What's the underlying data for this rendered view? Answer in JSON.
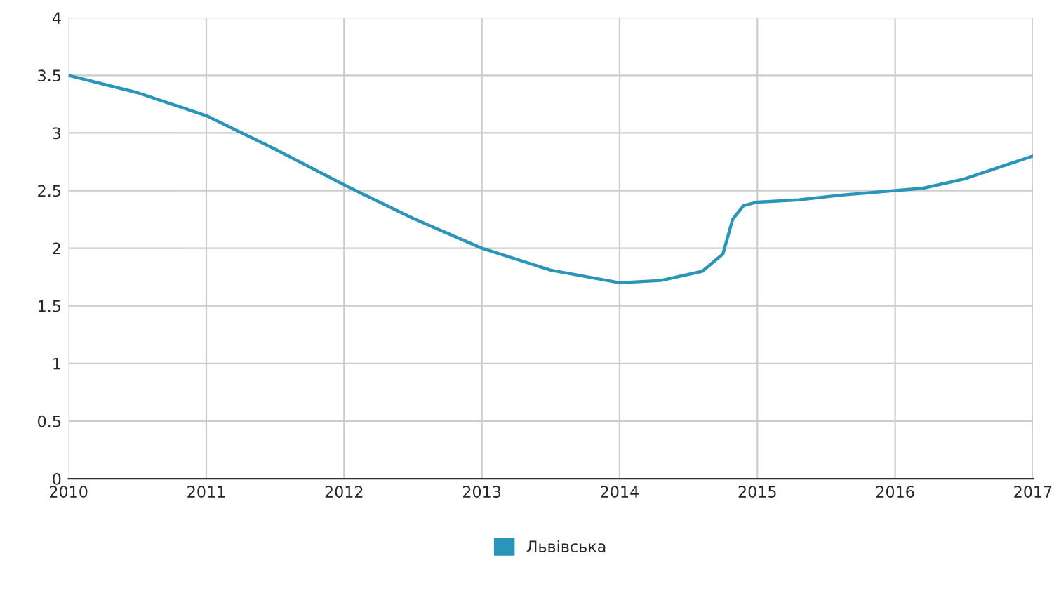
{
  "chart_data": {
    "type": "line",
    "x": [
      2010,
      2010.5,
      2011,
      2011.5,
      2012,
      2012.5,
      2013,
      2013.5,
      2014,
      2014.3,
      2014.6,
      2014.75,
      2014.82,
      2014.9,
      2015,
      2015.3,
      2015.6,
      2016,
      2016.2,
      2016.5,
      2016.8,
      2017
    ],
    "series": [
      {
        "name": "Львівська",
        "color": "#2b95b9",
        "values": [
          3.5,
          3.35,
          3.15,
          2.86,
          2.55,
          2.26,
          2.0,
          1.81,
          1.7,
          1.72,
          1.8,
          1.95,
          2.25,
          2.37,
          2.4,
          2.42,
          2.46,
          2.5,
          2.52,
          2.6,
          2.72,
          2.8
        ]
      }
    ],
    "xlim": [
      2010,
      2017
    ],
    "xticks": [
      2010,
      2011,
      2012,
      2013,
      2014,
      2015,
      2016,
      2017
    ],
    "ylim": [
      0,
      4
    ],
    "yticks": [
      0,
      0.5,
      1,
      1.5,
      2,
      2.5,
      3,
      3.5,
      4
    ],
    "grid": true,
    "legend": "bottom",
    "marker": "none",
    "line_style": "solid"
  }
}
